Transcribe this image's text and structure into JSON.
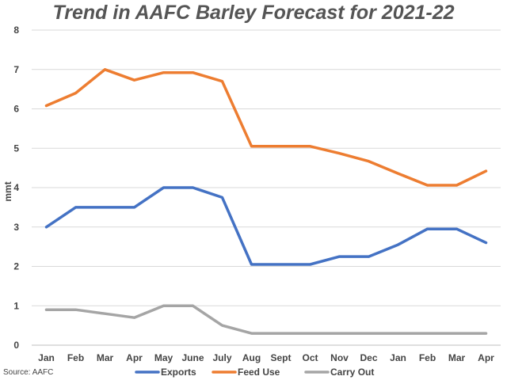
{
  "chart_data": {
    "type": "line",
    "title": "Trend in AAFC Barley Forecast for 2021-22",
    "xlabel": "",
    "ylabel": "mmt",
    "ylim": [
      0,
      8
    ],
    "yticks": [
      "0",
      "1",
      "2",
      "3",
      "4",
      "5",
      "6",
      "7",
      "8"
    ],
    "grid": "horizontal",
    "legend_position": "bottom",
    "categories": [
      "Jan",
      "Feb",
      "Mar",
      "Apr",
      "May",
      "June",
      "July",
      "Aug",
      "Sept",
      "Oct",
      "Nov",
      "Dec",
      "Jan",
      "Feb",
      "Mar",
      "Apr"
    ],
    "series": [
      {
        "name": "Exports",
        "color": "#4472C4",
        "values": [
          3.0,
          3.5,
          3.5,
          3.5,
          4.0,
          4.0,
          3.75,
          2.05,
          2.05,
          2.05,
          2.25,
          2.25,
          2.55,
          2.95,
          2.95,
          2.6
        ]
      },
      {
        "name": "Feed Use",
        "color": "#ED7D31",
        "values": [
          6.08,
          6.4,
          7.0,
          6.73,
          6.92,
          6.92,
          6.7,
          5.05,
          5.05,
          5.05,
          4.87,
          4.67,
          4.36,
          4.06,
          4.06,
          4.42
        ]
      },
      {
        "name": "Carry Out",
        "color": "#A5A5A5",
        "values": [
          0.9,
          0.9,
          0.8,
          0.7,
          1.0,
          1.0,
          0.5,
          0.3,
          0.3,
          0.3,
          0.3,
          0.3,
          0.3,
          0.3,
          0.3,
          0.3
        ]
      }
    ],
    "source": "Source: AAFC"
  }
}
